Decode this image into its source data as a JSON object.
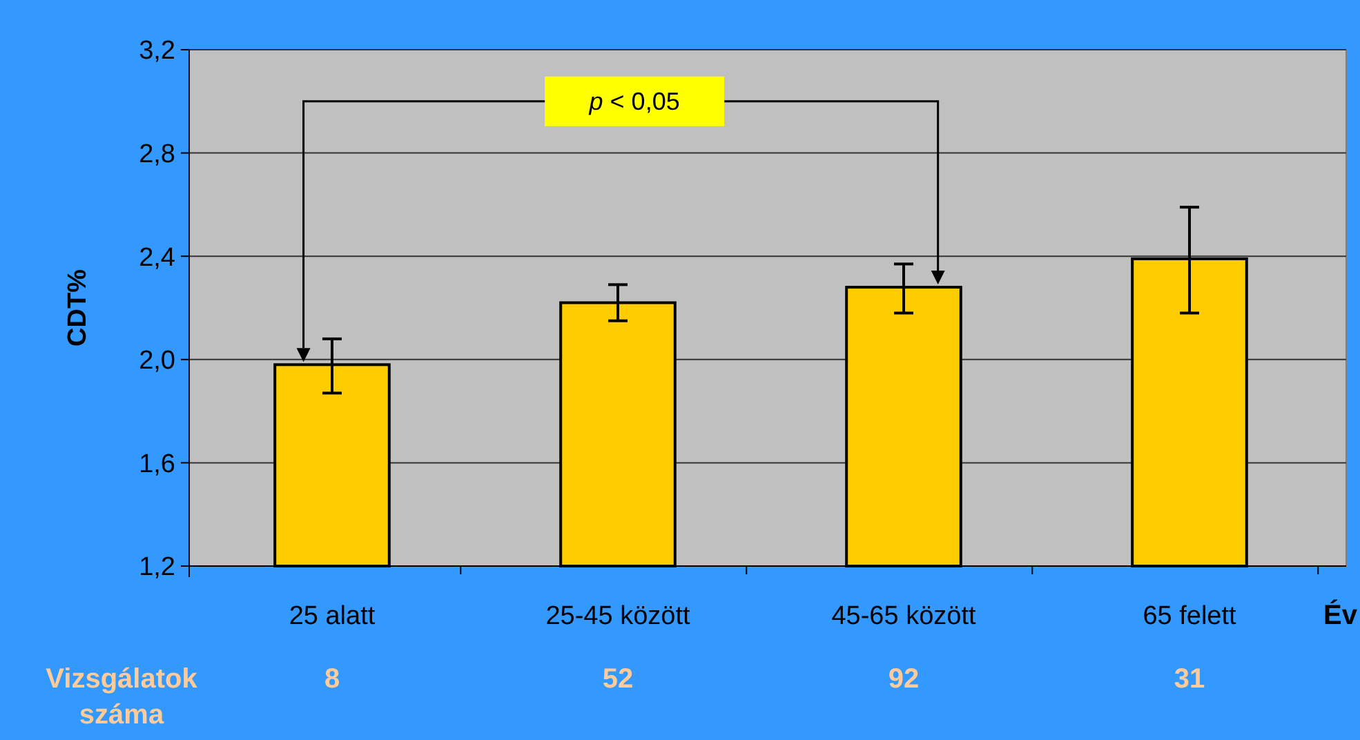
{
  "chart_data": {
    "type": "bar",
    "ylabel": "CDT%",
    "xlabel": "Év",
    "categories": [
      "25 alatt",
      "25-45 között",
      "45-65 között",
      "65 felett"
    ],
    "values": [
      1.98,
      2.22,
      2.28,
      2.39
    ],
    "errors": [
      [
        1.87,
        2.08
      ],
      [
        2.15,
        2.29
      ],
      [
        2.18,
        2.37
      ],
      [
        2.18,
        2.59
      ]
    ],
    "color": "#ffcc00",
    "ylim": [
      1.2,
      3.2
    ],
    "yticks": [
      {
        "value": 1.2,
        "label": "1,2"
      },
      {
        "value": 1.6,
        "label": "1,6"
      },
      {
        "value": 2.0,
        "label": "2,0"
      },
      {
        "value": 2.4,
        "label": "2,4"
      },
      {
        "value": 2.8,
        "label": "2,8"
      },
      {
        "value": 3.2,
        "label": "3,2"
      }
    ],
    "grid": "y",
    "annotations": [
      "p < 0,05",
      "Vizsgálatok száma",
      "8",
      "52",
      "92",
      "31"
    ]
  }
}
